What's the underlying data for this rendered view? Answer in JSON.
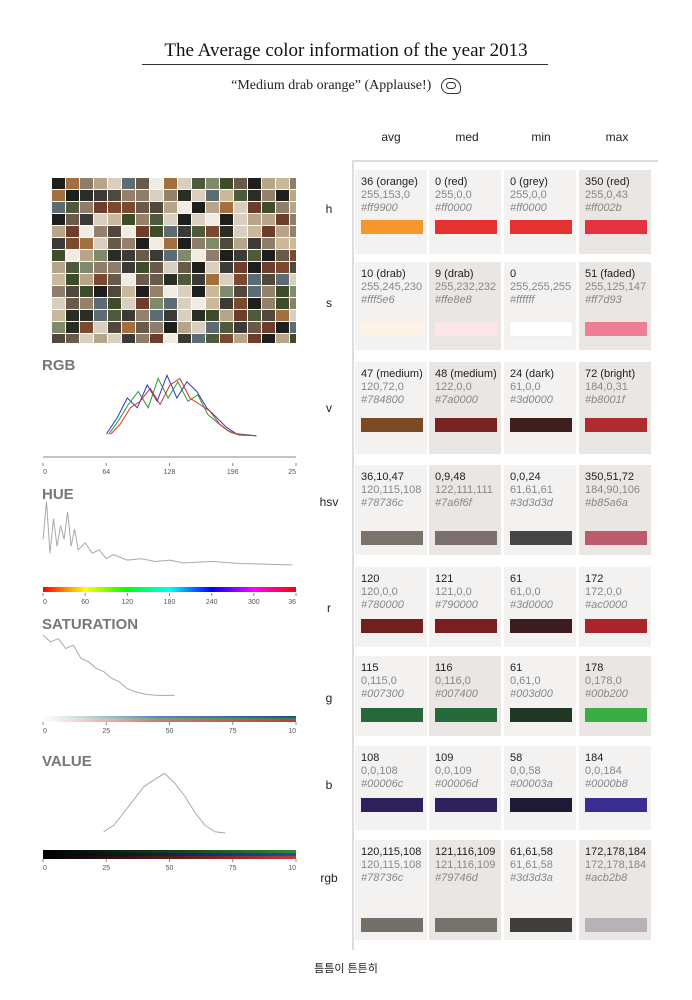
{
  "header": {
    "title": "The Average color information of the year 2013",
    "subtitle": "“Medium drab orange” (Applause!)"
  },
  "columns": [
    "avg",
    "med",
    "min",
    "max"
  ],
  "rows": [
    {
      "label": "h",
      "cells": [
        {
          "l1": "36 (orange)",
          "l2": "255,153,0",
          "l3": "#ff9900",
          "color": "#f7962b"
        },
        {
          "l1": "0 (red)",
          "l2": "255,0,0",
          "l3": "#ff0000",
          "color": "#e63131"
        },
        {
          "l1": "0 (grey)",
          "l2": "255,0,0",
          "l3": "#ff0000",
          "color": "#e63131"
        },
        {
          "l1": "350 (red)",
          "l2": "255,0,43",
          "l3": "#ff002b",
          "color": "#e53240"
        }
      ]
    },
    {
      "label": "s",
      "cells": [
        {
          "l1": "10 (drab)",
          "l2": "255,245,230",
          "l3": "#fff5e6",
          "color": "#fdf4e6"
        },
        {
          "l1": "9 (drab)",
          "l2": "255,232,232",
          "l3": "#ffe8e8",
          "color": "#fde5ea"
        },
        {
          "l1": "0",
          "l2": "255,255,255",
          "l3": "#ffffff",
          "color": "#ffffff"
        },
        {
          "l1": "51 (faded)",
          "l2": "255,125,147",
          "l3": "#ff7d93",
          "color": "#ef7d93"
        }
      ]
    },
    {
      "label": "v",
      "cells": [
        {
          "l1": "47 (medium)",
          "l2": "120,72,0",
          "l3": "#784800",
          "color": "#7b4a23"
        },
        {
          "l1": "48 (medium)",
          "l2": "122,0,0",
          "l3": "#7a0000",
          "color": "#7a2323"
        },
        {
          "l1": "24 (dark)",
          "l2": "61,0,0",
          "l3": "#3d0000",
          "color": "#3f1f1d"
        },
        {
          "l1": "72 (bright)",
          "l2": "184,0,31",
          "l3": "#b8001f",
          "color": "#b02a2f"
        }
      ]
    },
    {
      "label": "hsv",
      "cells": [
        {
          "l1": "36,10,47",
          "l2": "120,115,108",
          "l3": "#78736c",
          "color": "#7a736c"
        },
        {
          "l1": "0,9,48",
          "l2": "122,111,111",
          "l3": "#7a6f6f",
          "color": "#7a6f6e"
        },
        {
          "l1": "0,0,24",
          "l2": "61,61,61",
          "l3": "#3d3d3d",
          "color": "#454545"
        },
        {
          "l1": "350,51,72",
          "l2": "184,90,106",
          "l3": "#b85a6a",
          "color": "#bb5b6b"
        }
      ]
    },
    {
      "label": "r",
      "cells": [
        {
          "l1": "120",
          "l2": "120,0,0",
          "l3": "#780000",
          "color": "#731f1e"
        },
        {
          "l1": "121",
          "l2": "121,0,0",
          "l3": "#790000",
          "color": "#7a1f21"
        },
        {
          "l1": "61",
          "l2": "61,0,0",
          "l3": "#3d0000",
          "color": "#3b1c1f"
        },
        {
          "l1": "172",
          "l2": "172,0,0",
          "l3": "#ac0000",
          "color": "#a8262a"
        }
      ]
    },
    {
      "label": "g",
      "cells": [
        {
          "l1": "115",
          "l2": "0,115,0",
          "l3": "#007300",
          "color": "#27683a"
        },
        {
          "l1": "116",
          "l2": "0,116,0",
          "l3": "#007400",
          "color": "#27693b"
        },
        {
          "l1": "61",
          "l2": "0,61,0",
          "l3": "#003d00",
          "color": "#203823"
        },
        {
          "l1": "178",
          "l2": "0,178,0",
          "l3": "#00b200",
          "color": "#3aae44"
        }
      ]
    },
    {
      "label": "b",
      "cells": [
        {
          "l1": "108",
          "l2": "0,0,108",
          "l3": "#00006c",
          "color": "#2e205d"
        },
        {
          "l1": "109",
          "l2": "0,0,109",
          "l3": "#00006d",
          "color": "#2f205e"
        },
        {
          "l1": "58",
          "l2": "0,0,58",
          "l3": "#00003a",
          "color": "#1d1a35"
        },
        {
          "l1": "184",
          "l2": "0,0,184",
          "l3": "#0000b8",
          "color": "#3a2d91"
        }
      ]
    },
    {
      "label": "rgb",
      "cells": [
        {
          "l1": "120,115,108",
          "l2": "120,115,108",
          "l3": "#78736c",
          "color": "#756f69"
        },
        {
          "l1": "121,116,109",
          "l2": "121,116,109",
          "l3": "#79746d",
          "color": "#77716b"
        },
        {
          "l1": "61,61,58",
          "l2": "61,61,58",
          "l3": "#3d3d3a",
          "color": "#3f3e3a"
        },
        {
          "l1": "172,178,184",
          "l2": "172,178,184",
          "l3": "#acb2b8",
          "color": "#b5b3b6"
        }
      ]
    }
  ],
  "chart_data": [
    {
      "type": "line",
      "title": "RGB",
      "x_ticks": [
        "0",
        "64",
        "128",
        "196",
        "25"
      ],
      "xlim": [
        0,
        255
      ],
      "series": [
        {
          "color": "#2b38c8",
          "x": [
            64,
            75,
            85,
            95,
            105,
            115,
            125,
            135,
            145,
            155,
            165,
            175,
            185,
            195,
            215
          ],
          "values": [
            0.05,
            0.3,
            0.6,
            0.45,
            0.8,
            0.55,
            0.95,
            0.6,
            0.85,
            0.7,
            0.45,
            0.3,
            0.15,
            0.05,
            0.02
          ]
        },
        {
          "color": "#2a9a2a",
          "x": [
            66,
            76,
            86,
            96,
            106,
            116,
            126,
            136,
            146,
            156,
            166,
            176,
            186,
            196,
            215
          ],
          "values": [
            0.04,
            0.25,
            0.5,
            0.7,
            0.45,
            0.9,
            0.6,
            0.85,
            0.55,
            0.65,
            0.35,
            0.22,
            0.1,
            0.04,
            0.02
          ]
        },
        {
          "color": "#d63030",
          "x": [
            68,
            78,
            88,
            98,
            108,
            118,
            128,
            138,
            148,
            158,
            168,
            178,
            188,
            198,
            215
          ],
          "values": [
            0.04,
            0.2,
            0.45,
            0.55,
            0.75,
            0.5,
            0.8,
            0.9,
            0.6,
            0.5,
            0.4,
            0.2,
            0.08,
            0.03,
            0.02
          ]
        }
      ]
    },
    {
      "type": "line",
      "title": "HUE",
      "x_ticks": [
        "0",
        "60",
        "120",
        "180",
        "240",
        "300",
        "36"
      ],
      "xlim": [
        0,
        360
      ],
      "series": [
        {
          "color": "#aaaaaa",
          "x": [
            0,
            5,
            10,
            15,
            20,
            25,
            30,
            35,
            40,
            45,
            50,
            60,
            70,
            80,
            90,
            100,
            120,
            140,
            160,
            180,
            200,
            240,
            280,
            320,
            355
          ],
          "values": [
            0.4,
            0.95,
            0.2,
            0.7,
            0.3,
            0.6,
            0.4,
            0.8,
            0.3,
            0.55,
            0.25,
            0.35,
            0.2,
            0.25,
            0.12,
            0.18,
            0.1,
            0.12,
            0.08,
            0.1,
            0.06,
            0.08,
            0.05,
            0.04,
            0.03
          ]
        }
      ]
    },
    {
      "type": "line",
      "title": "SATURATION",
      "x_ticks": [
        "0",
        "25",
        "50",
        "75",
        "10"
      ],
      "xlim": [
        0,
        100
      ],
      "series": [
        {
          "color": "#aaaaaa",
          "x": [
            0,
            3,
            6,
            9,
            12,
            15,
            18,
            21,
            24,
            27,
            30,
            33,
            36,
            40,
            45,
            52
          ],
          "values": [
            0.95,
            0.85,
            0.9,
            0.75,
            0.8,
            0.6,
            0.55,
            0.45,
            0.4,
            0.3,
            0.25,
            0.15,
            0.1,
            0.06,
            0.04,
            0.04
          ]
        }
      ]
    },
    {
      "type": "line",
      "title": "VALUE",
      "x_ticks": [
        "0",
        "25",
        "50",
        "75",
        "10"
      ],
      "xlim": [
        0,
        100
      ],
      "series": [
        {
          "color": "#aaaaaa",
          "x": [
            24,
            28,
            32,
            36,
            40,
            44,
            48,
            52,
            56,
            60,
            64,
            68,
            72
          ],
          "values": [
            0.05,
            0.15,
            0.35,
            0.55,
            0.75,
            0.85,
            0.95,
            0.8,
            0.6,
            0.35,
            0.15,
            0.05,
            0.03
          ]
        }
      ]
    }
  ],
  "footer": {
    "text": "틈틈이 튼튼히"
  }
}
